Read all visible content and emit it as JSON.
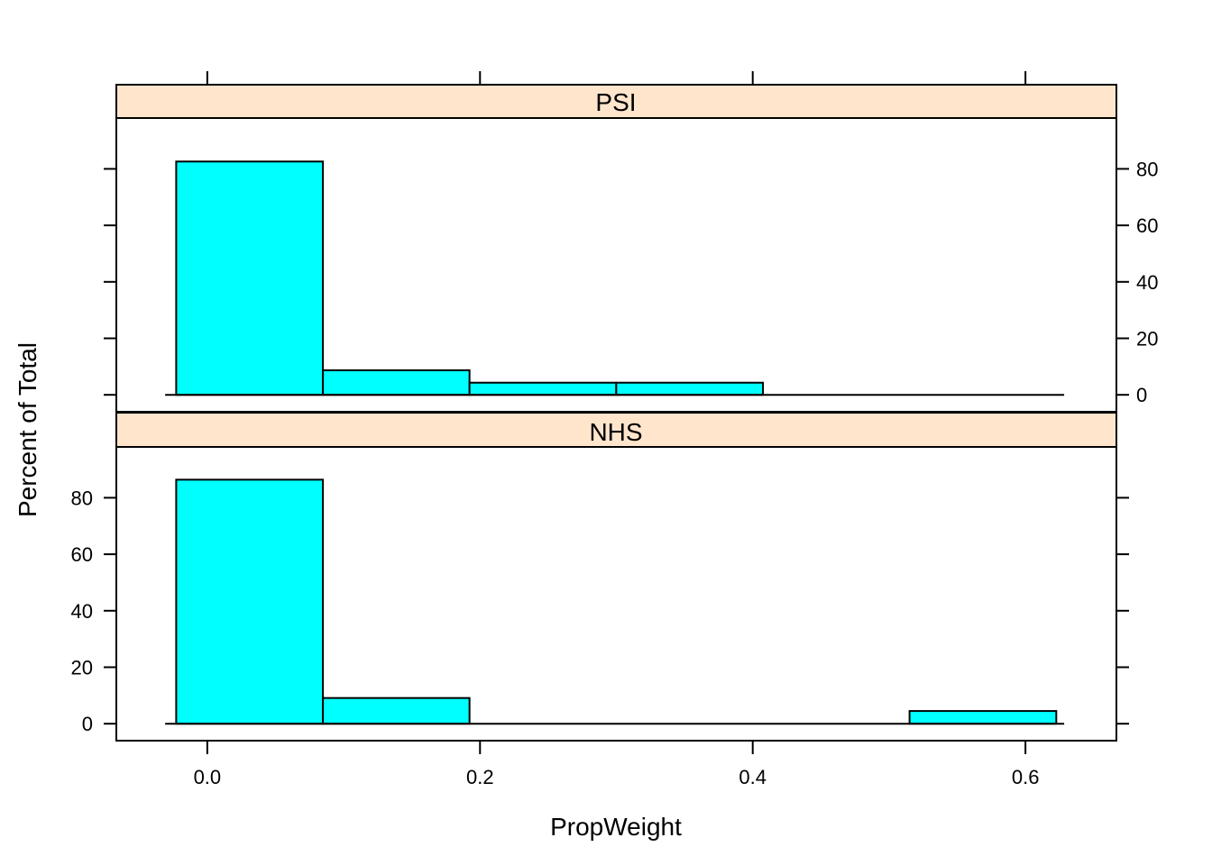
{
  "chart_data": {
    "type": "bar",
    "subtype": "lattice-histogram",
    "xlabel": "PropWeight",
    "ylabel": "Percent of Total",
    "xlim": [
      -0.0667,
      0.6667
    ],
    "ylim": [
      -6.0,
      98.0
    ],
    "x_ticks": [
      0.0,
      0.2,
      0.4,
      0.6
    ],
    "x_tick_labels": [
      "0.0",
      "0.2",
      "0.4",
      "0.6"
    ],
    "y_ticks": [
      0,
      20,
      40,
      60,
      80
    ],
    "y_tick_labels": [
      "0",
      "20",
      "40",
      "60",
      "80"
    ],
    "bin_edges": [
      -0.0228,
      0.0848,
      0.1923,
      0.2999,
      0.4075,
      0.515,
      0.6226
    ],
    "baseline_range": [
      -0.0309,
      0.6284
    ],
    "colors": {
      "bar_fill": "#00ffff",
      "strip_fill": "#ffe5cc",
      "outline": "#000000"
    },
    "panels": [
      {
        "name": "PSI",
        "values": [
          82.6,
          8.7,
          4.3,
          4.3,
          0,
          0
        ]
      },
      {
        "name": "NHS",
        "values": [
          86.4,
          9.1,
          0,
          0,
          0,
          4.5
        ]
      }
    ]
  }
}
